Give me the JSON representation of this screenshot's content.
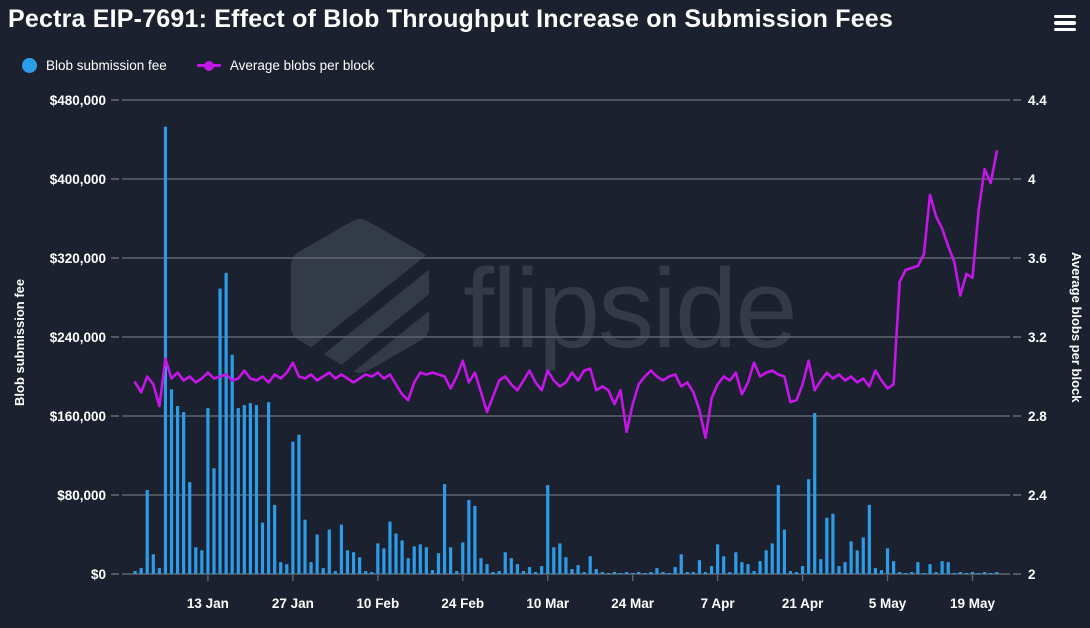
{
  "header": {
    "title": "Pectra EIP-7691: Effect of Blob Throughput Increase on Submission Fees"
  },
  "legend": {
    "items": [
      {
        "label": "Blob submission fee",
        "marker": "circle",
        "color": "#2d9ce8"
      },
      {
        "label": "Average blobs per block",
        "marker": "line-dot",
        "color": "#c516e8"
      }
    ]
  },
  "watermark": {
    "text": "flipside",
    "logo": "flipside-hexagon-logo",
    "color": "#333a48"
  },
  "colors": {
    "background": "#1b212e",
    "grid": "#60656e",
    "bar": "#2d9ce8",
    "line": "#c516e8",
    "text": "#ffffff",
    "watermark": "#333a48"
  },
  "chart_data": {
    "type": "combo",
    "title": "Pectra EIP-7691: Effect of Blob Throughput Increase on Submission Fees",
    "grid": "horizontal",
    "legend_position": "top-left",
    "x": [
      "1 Jan",
      "2 Jan",
      "3 Jan",
      "4 Jan",
      "5 Jan",
      "6 Jan",
      "7 Jan",
      "8 Jan",
      "9 Jan",
      "10 Jan",
      "11 Jan",
      "12 Jan",
      "13 Jan",
      "14 Jan",
      "15 Jan",
      "16 Jan",
      "17 Jan",
      "18 Jan",
      "19 Jan",
      "20 Jan",
      "21 Jan",
      "22 Jan",
      "23 Jan",
      "24 Jan",
      "25 Jan",
      "26 Jan",
      "27 Jan",
      "28 Jan",
      "29 Jan",
      "30 Jan",
      "31 Jan",
      "1 Feb",
      "2 Feb",
      "3 Feb",
      "4 Feb",
      "5 Feb",
      "6 Feb",
      "7 Feb",
      "8 Feb",
      "9 Feb",
      "10 Feb",
      "11 Feb",
      "12 Feb",
      "13 Feb",
      "14 Feb",
      "15 Feb",
      "16 Feb",
      "17 Feb",
      "18 Feb",
      "19 Feb",
      "20 Feb",
      "21 Feb",
      "22 Feb",
      "23 Feb",
      "24 Feb",
      "25 Feb",
      "26 Feb",
      "27 Feb",
      "28 Feb",
      "1 Mar",
      "2 Mar",
      "3 Mar",
      "4 Mar",
      "5 Mar",
      "6 Mar",
      "7 Mar",
      "8 Mar",
      "9 Mar",
      "10 Mar",
      "11 Mar",
      "12 Mar",
      "13 Mar",
      "14 Mar",
      "15 Mar",
      "16 Mar",
      "17 Mar",
      "18 Mar",
      "19 Mar",
      "20 Mar",
      "21 Mar",
      "22 Mar",
      "23 Mar",
      "24 Mar",
      "25 Mar",
      "26 Mar",
      "27 Mar",
      "28 Mar",
      "29 Mar",
      "30 Mar",
      "31 Mar",
      "1 Apr",
      "2 Apr",
      "3 Apr",
      "4 Apr",
      "5 Apr",
      "6 Apr",
      "7 Apr",
      "8 Apr",
      "9 Apr",
      "10 Apr",
      "11 Apr",
      "12 Apr",
      "13 Apr",
      "14 Apr",
      "15 Apr",
      "16 Apr",
      "17 Apr",
      "18 Apr",
      "19 Apr",
      "20 Apr",
      "21 Apr",
      "22 Apr",
      "23 Apr",
      "24 Apr",
      "25 Apr",
      "26 Apr",
      "27 Apr",
      "28 Apr",
      "29 Apr",
      "30 Apr",
      "1 May",
      "2 May",
      "3 May",
      "4 May",
      "5 May",
      "6 May",
      "7 May",
      "8 May",
      "9 May",
      "10 May",
      "11 May",
      "12 May",
      "13 May",
      "14 May",
      "15 May",
      "16 May",
      "17 May",
      "18 May",
      "19 May",
      "20 May",
      "21 May",
      "22 May",
      "23 May"
    ],
    "series": [
      {
        "name": "Blob submission fee",
        "type": "bar",
        "axis": "left",
        "color": "#2d9ce8",
        "values": [
          3000,
          6000,
          85000,
          20000,
          6000,
          453000,
          187000,
          170000,
          164000,
          93000,
          27000,
          24000,
          168000,
          107000,
          289000,
          305000,
          222000,
          168000,
          171000,
          173000,
          171000,
          52000,
          174000,
          70000,
          12000,
          10000,
          134000,
          141000,
          55000,
          12000,
          40000,
          6000,
          45000,
          3000,
          50000,
          24000,
          22000,
          17000,
          3000,
          2000,
          31000,
          26000,
          53000,
          41000,
          34000,
          16000,
          28000,
          30000,
          27000,
          4000,
          21000,
          91000,
          27000,
          3000,
          32000,
          75000,
          69000,
          16000,
          10000,
          2000,
          3000,
          22000,
          16000,
          10000,
          3000,
          7000,
          2000,
          8000,
          90000,
          27000,
          31000,
          17000,
          5000,
          9000,
          2000,
          18000,
          5000,
          2000,
          1000,
          2000,
          1000,
          2000,
          1000,
          2000,
          1000,
          2000,
          6000,
          2000,
          1000,
          7000,
          20000,
          2000,
          2000,
          14000,
          2000,
          8000,
          30000,
          18000,
          2000,
          22000,
          12000,
          10000,
          3000,
          13000,
          24000,
          31000,
          90000,
          45000,
          3000,
          2000,
          8000,
          96000,
          163000,
          15000,
          57000,
          61000,
          8000,
          12000,
          33000,
          24000,
          37000,
          70000,
          6000,
          4000,
          26000,
          13000,
          2000,
          1000,
          2000,
          12000,
          1000,
          10000,
          2000,
          13000,
          12000,
          1000,
          2000,
          1000,
          2000,
          1000,
          2000,
          1000,
          2000
        ]
      },
      {
        "name": "Average blobs per block",
        "type": "line",
        "axis": "right",
        "color": "#c516e8",
        "values": [
          2.97,
          2.92,
          3.0,
          2.96,
          2.85,
          3.09,
          2.99,
          3.02,
          2.98,
          3.0,
          2.97,
          2.99,
          3.02,
          2.99,
          3.0,
          3.01,
          2.98,
          2.99,
          3.03,
          2.99,
          2.98,
          3.0,
          2.97,
          3.01,
          2.99,
          3.02,
          3.07,
          3.0,
          2.99,
          3.01,
          2.98,
          3.0,
          3.02,
          2.99,
          3.01,
          2.99,
          2.97,
          2.99,
          3.01,
          3.0,
          3.02,
          2.99,
          3.01,
          2.96,
          2.91,
          2.88,
          2.97,
          3.02,
          3.01,
          3.02,
          3.01,
          3.0,
          2.94,
          3.0,
          3.08,
          2.97,
          3.02,
          2.92,
          2.82,
          2.9,
          2.98,
          3.0,
          2.96,
          2.93,
          2.98,
          3.03,
          2.97,
          2.93,
          3.03,
          2.98,
          2.95,
          2.97,
          3.02,
          2.98,
          3.03,
          3.04,
          2.93,
          2.95,
          2.93,
          2.86,
          2.93,
          2.72,
          2.86,
          2.96,
          3.0,
          3.03,
          3.0,
          2.98,
          3.0,
          3.01,
          2.95,
          2.97,
          2.92,
          2.83,
          2.69,
          2.89,
          2.96,
          3.0,
          2.98,
          3.02,
          2.91,
          2.97,
          3.07,
          3.0,
          3.02,
          3.03,
          3.01,
          3.0,
          2.87,
          2.88,
          2.96,
          3.08,
          2.93,
          2.98,
          3.02,
          2.99,
          3.01,
          2.98,
          3.0,
          2.97,
          2.99,
          2.95,
          3.03,
          2.98,
          2.94,
          2.96,
          3.48,
          3.54,
          3.55,
          3.56,
          3.62,
          3.92,
          3.81,
          3.75,
          3.66,
          3.58,
          3.41,
          3.52,
          3.5,
          3.84,
          4.05,
          3.98,
          4.14
        ]
      }
    ],
    "left_axis": {
      "title": "Blob submission fee",
      "range": [
        0,
        480000
      ],
      "tick_labels": [
        "$0",
        "$80,000",
        "$160,000",
        "$240,000",
        "$320,000",
        "$400,000",
        "$480,000"
      ]
    },
    "right_axis": {
      "title": "Average blobs per block",
      "range": [
        2,
        4.4
      ],
      "tick_labels": [
        "2",
        "2.4",
        "2.8",
        "3.2",
        "3.6",
        "4",
        "4.4"
      ]
    },
    "x_ticks": [
      {
        "label": "13 Jan",
        "index": 12
      },
      {
        "label": "27 Jan",
        "index": 26
      },
      {
        "label": "10 Feb",
        "index": 40
      },
      {
        "label": "24 Feb",
        "index": 54
      },
      {
        "label": "10 Mar",
        "index": 68
      },
      {
        "label": "24 Mar",
        "index": 82
      },
      {
        "label": "7 Apr",
        "index": 96
      },
      {
        "label": "21 Apr",
        "index": 110
      },
      {
        "label": "5 May",
        "index": 124
      },
      {
        "label": "19 May",
        "index": 138
      }
    ]
  }
}
